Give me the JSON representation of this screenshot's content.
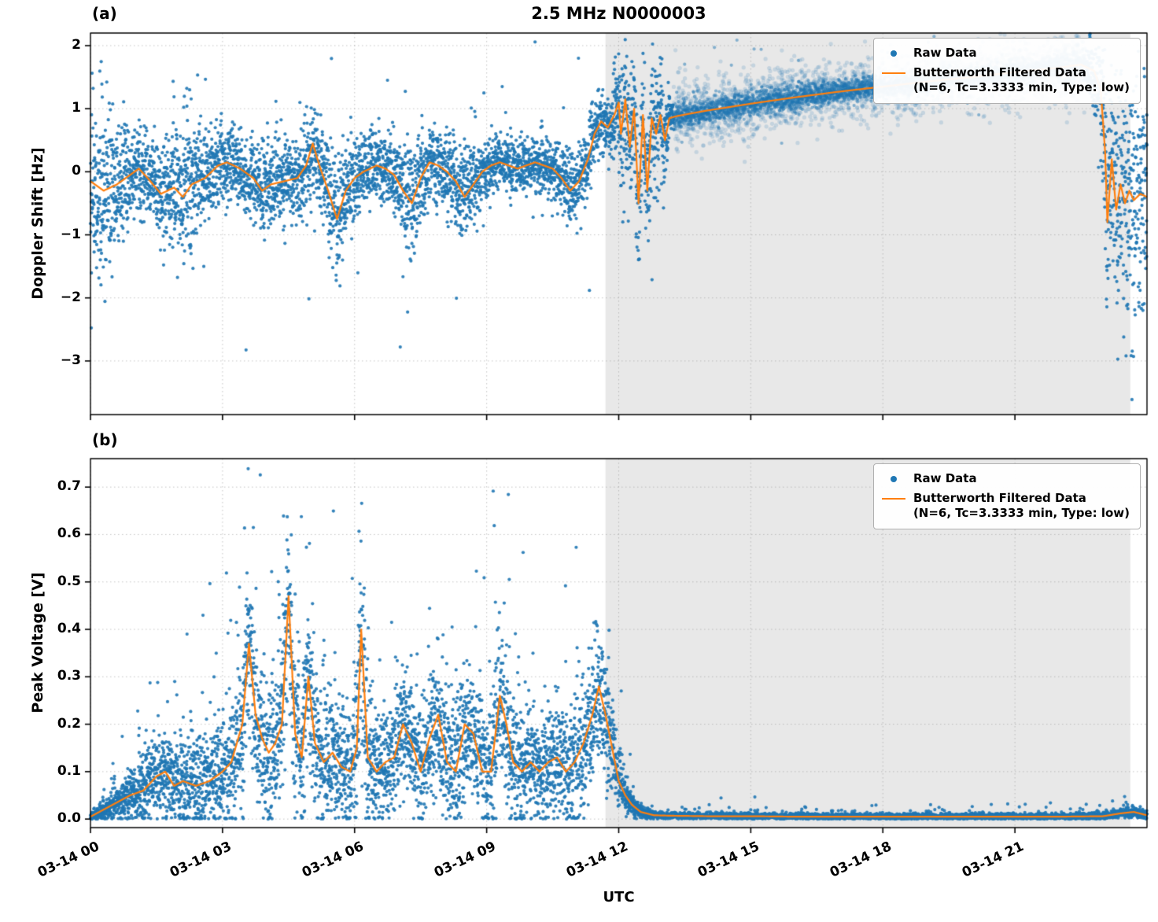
{
  "figure": {
    "title": "2.5 MHz N0000003",
    "xlabel": "UTC",
    "panel_a_label": "(a)",
    "panel_b_label": "(b)",
    "colors": {
      "raw": "#1f77b4",
      "filtered": "#ff7f0e",
      "shade": "#e8e8e8",
      "grid": "#bbbbbb",
      "axis": "#000000"
    }
  },
  "legend": {
    "raw_label": "Raw Data",
    "filtered_label_line1": "Butterworth Filtered Data",
    "filtered_label_line2": "(N=6, Tc=3.3333 min, Type: low)"
  },
  "chart_data": [
    {
      "id": "doppler-shift",
      "type": "scatter",
      "panel": "(a)",
      "ylabel": "Doppler Shift [Hz]",
      "units": "Hz",
      "ylim": [
        -3.85,
        2.2
      ],
      "yticks": [
        -3,
        -2,
        -1,
        0,
        1,
        2
      ],
      "ytick_decimals": 0,
      "x_range_hours": [
        0,
        24
      ],
      "xtick_hours": [
        0,
        3,
        6,
        9,
        12,
        15,
        18,
        21
      ],
      "xtick_labels": [
        "03-14 00",
        "03-14 03",
        "03-14 06",
        "03-14 09",
        "03-14 12",
        "03-14 15",
        "03-14 18",
        "03-14 21"
      ],
      "show_xtick_labels": false,
      "shaded_region_hours": [
        11.7,
        23.62
      ],
      "grid": true,
      "legend_position": "upper right",
      "series": [
        {
          "name": "Raw Data",
          "kind": "scatter",
          "color": "#1f77b4"
        },
        {
          "name": "Butterworth Filtered Data (N=6, Tc=3.3333 min, Type: low)",
          "kind": "line",
          "color": "#ff7f0e"
        }
      ],
      "seed": 42,
      "n_points": 8200,
      "outlier_prob": 0.02,
      "outlier_scale": 3.2,
      "outlier_side": "both",
      "halo_band": {
        "hours": [
          13.25,
          22.6
        ],
        "spread_scale": 2.6,
        "alpha": 0.18,
        "n_points": 2600
      },
      "filtered_line": [
        [
          0,
          -0.15
        ],
        [
          0.3,
          -0.3
        ],
        [
          0.6,
          -0.2
        ],
        [
          0.9,
          -0.05
        ],
        [
          1.1,
          0.05
        ],
        [
          1.3,
          -0.1
        ],
        [
          1.6,
          -0.35
        ],
        [
          1.9,
          -0.25
        ],
        [
          2.1,
          -0.4
        ],
        [
          2.3,
          -0.2
        ],
        [
          2.6,
          -0.1
        ],
        [
          2.9,
          0.1
        ],
        [
          3.1,
          0.15
        ],
        [
          3.4,
          0.05
        ],
        [
          3.7,
          -0.1
        ],
        [
          3.9,
          -0.3
        ],
        [
          4.1,
          -0.2
        ],
        [
          4.4,
          -0.15
        ],
        [
          4.7,
          -0.1
        ],
        [
          4.9,
          0.1
        ],
        [
          5.05,
          0.45
        ],
        [
          5.2,
          0.1
        ],
        [
          5.4,
          -0.3
        ],
        [
          5.6,
          -0.75
        ],
        [
          5.8,
          -0.3
        ],
        [
          6,
          -0.1
        ],
        [
          6.2,
          0
        ],
        [
          6.5,
          0.1
        ],
        [
          6.7,
          0.05
        ],
        [
          6.9,
          -0.05
        ],
        [
          7.1,
          -0.3
        ],
        [
          7.3,
          -0.5
        ],
        [
          7.5,
          -0.1
        ],
        [
          7.7,
          0.15
        ],
        [
          7.9,
          0.1
        ],
        [
          8.1,
          0
        ],
        [
          8.3,
          -0.15
        ],
        [
          8.5,
          -0.4
        ],
        [
          8.7,
          -0.2
        ],
        [
          8.9,
          0
        ],
        [
          9.1,
          0.1
        ],
        [
          9.3,
          0.15
        ],
        [
          9.5,
          0.1
        ],
        [
          9.7,
          0.05
        ],
        [
          9.9,
          0.1
        ],
        [
          10.1,
          0.15
        ],
        [
          10.3,
          0.1
        ],
        [
          10.5,
          0.05
        ],
        [
          10.7,
          -0.1
        ],
        [
          10.9,
          -0.3
        ],
        [
          11.1,
          -0.15
        ],
        [
          11.3,
          0.2
        ],
        [
          11.45,
          0.6
        ],
        [
          11.6,
          0.8
        ],
        [
          11.75,
          0.7
        ],
        [
          11.9,
          0.9
        ],
        [
          12,
          1.1
        ],
        [
          12.05,
          0.6
        ],
        [
          12.15,
          1.15
        ],
        [
          12.25,
          0.4
        ],
        [
          12.35,
          1
        ],
        [
          12.45,
          -0.5
        ],
        [
          12.55,
          0.9
        ],
        [
          12.65,
          -0.3
        ],
        [
          12.75,
          0.85
        ],
        [
          12.85,
          0.6
        ],
        [
          12.95,
          0.9
        ],
        [
          13.05,
          0.5
        ],
        [
          13.15,
          0.85
        ],
        [
          13.3,
          0.88
        ],
        [
          13.6,
          0.92
        ],
        [
          14,
          0.97
        ],
        [
          15,
          1.08
        ],
        [
          16,
          1.18
        ],
        [
          17,
          1.27
        ],
        [
          18,
          1.35
        ],
        [
          19,
          1.43
        ],
        [
          20,
          1.5
        ],
        [
          21,
          1.58
        ],
        [
          22,
          1.65
        ],
        [
          22.5,
          1.7
        ],
        [
          22.8,
          1.6
        ],
        [
          22.95,
          1.3
        ],
        [
          23.05,
          0.3
        ],
        [
          23.1,
          -0.8
        ],
        [
          23.2,
          0.2
        ],
        [
          23.3,
          -0.6
        ],
        [
          23.4,
          -0.2
        ],
        [
          23.5,
          -0.5
        ],
        [
          23.6,
          -0.3
        ],
        [
          23.7,
          -0.45
        ],
        [
          23.85,
          -0.35
        ],
        [
          24,
          -0.4
        ]
      ],
      "raw_spread": [
        [
          0,
          0.7
        ],
        [
          0.3,
          0.8
        ],
        [
          0.6,
          0.5
        ],
        [
          1,
          0.35
        ],
        [
          1.5,
          0.35
        ],
        [
          2,
          0.55
        ],
        [
          2.2,
          0.8
        ],
        [
          2.5,
          0.4
        ],
        [
          3,
          0.3
        ],
        [
          3.5,
          0.3
        ],
        [
          4,
          0.35
        ],
        [
          4.5,
          0.3
        ],
        [
          5,
          0.35
        ],
        [
          5.5,
          0.45
        ],
        [
          6,
          0.3
        ],
        [
          6.5,
          0.25
        ],
        [
          7,
          0.3
        ],
        [
          7.3,
          0.45
        ],
        [
          7.6,
          0.3
        ],
        [
          8,
          0.3
        ],
        [
          8.5,
          0.4
        ],
        [
          9,
          0.25
        ],
        [
          9.5,
          0.2
        ],
        [
          10,
          0.2
        ],
        [
          10.5,
          0.25
        ],
        [
          11,
          0.3
        ],
        [
          11.5,
          0.25
        ],
        [
          11.9,
          0.3
        ],
        [
          12.1,
          0.5
        ],
        [
          12.5,
          0.6
        ],
        [
          12.9,
          0.5
        ],
        [
          13.2,
          0.15
        ],
        [
          13.5,
          0.1
        ],
        [
          14,
          0.1
        ],
        [
          15,
          0.1
        ],
        [
          16,
          0.1
        ],
        [
          17,
          0.09
        ],
        [
          18,
          0.09
        ],
        [
          19,
          0.09
        ],
        [
          20,
          0.09
        ],
        [
          21,
          0.09
        ],
        [
          22,
          0.1
        ],
        [
          22.6,
          0.15
        ],
        [
          22.9,
          0.4
        ],
        [
          23.1,
          0.8
        ],
        [
          23.4,
          0.9
        ],
        [
          23.7,
          1
        ],
        [
          24,
          1.1
        ]
      ]
    },
    {
      "id": "peak-voltage",
      "type": "scatter",
      "panel": "(b)",
      "ylabel": "Peak Voltage [V]",
      "units": "V",
      "ylim": [
        -0.018,
        0.76
      ],
      "yticks": [
        0.0,
        0.1,
        0.2,
        0.3,
        0.4,
        0.5,
        0.6,
        0.7
      ],
      "ytick_decimals": 1,
      "x_range_hours": [
        0,
        24
      ],
      "xtick_hours": [
        0,
        3,
        6,
        9,
        12,
        15,
        18,
        21
      ],
      "xtick_labels": [
        "03-14 00",
        "03-14 03",
        "03-14 06",
        "03-14 09",
        "03-14 12",
        "03-14 15",
        "03-14 18",
        "03-14 21"
      ],
      "show_xtick_labels": true,
      "shaded_region_hours": [
        11.7,
        23.62
      ],
      "grid": true,
      "legend_position": "upper right",
      "series": [
        {
          "name": "Raw Data",
          "kind": "scatter",
          "color": "#1f77b4"
        },
        {
          "name": "Butterworth Filtered Data (N=6, Tc=3.3333 min, Type: low)",
          "kind": "line",
          "color": "#ff7f0e"
        }
      ],
      "seed": 1337,
      "n_points": 9000,
      "outlier_prob": 0.03,
      "outlier_scale": 2.8,
      "outlier_side": "up",
      "clip_min": 0.0,
      "filtered_line": [
        [
          0,
          0.005
        ],
        [
          0.3,
          0.02
        ],
        [
          0.6,
          0.035
        ],
        [
          0.9,
          0.05
        ],
        [
          1.2,
          0.06
        ],
        [
          1.5,
          0.09
        ],
        [
          1.7,
          0.1
        ],
        [
          1.9,
          0.07
        ],
        [
          2.1,
          0.08
        ],
        [
          2.4,
          0.07
        ],
        [
          2.7,
          0.08
        ],
        [
          3,
          0.1
        ],
        [
          3.2,
          0.12
        ],
        [
          3.45,
          0.2
        ],
        [
          3.6,
          0.37
        ],
        [
          3.75,
          0.22
        ],
        [
          3.9,
          0.17
        ],
        [
          4.05,
          0.14
        ],
        [
          4.2,
          0.16
        ],
        [
          4.35,
          0.2
        ],
        [
          4.5,
          0.47
        ],
        [
          4.65,
          0.18
        ],
        [
          4.8,
          0.13
        ],
        [
          4.95,
          0.3
        ],
        [
          5.1,
          0.16
        ],
        [
          5.3,
          0.12
        ],
        [
          5.5,
          0.14
        ],
        [
          5.7,
          0.11
        ],
        [
          5.9,
          0.1
        ],
        [
          6.05,
          0.15
        ],
        [
          6.15,
          0.4
        ],
        [
          6.3,
          0.13
        ],
        [
          6.5,
          0.1
        ],
        [
          6.7,
          0.12
        ],
        [
          6.9,
          0.13
        ],
        [
          7.1,
          0.2
        ],
        [
          7.3,
          0.16
        ],
        [
          7.5,
          0.1
        ],
        [
          7.7,
          0.17
        ],
        [
          7.9,
          0.22
        ],
        [
          8.1,
          0.12
        ],
        [
          8.3,
          0.1
        ],
        [
          8.5,
          0.2
        ],
        [
          8.7,
          0.18
        ],
        [
          8.9,
          0.1
        ],
        [
          9.1,
          0.1
        ],
        [
          9.3,
          0.26
        ],
        [
          9.45,
          0.2
        ],
        [
          9.6,
          0.12
        ],
        [
          9.8,
          0.1
        ],
        [
          10,
          0.12
        ],
        [
          10.2,
          0.1
        ],
        [
          10.4,
          0.12
        ],
        [
          10.6,
          0.13
        ],
        [
          10.8,
          0.1
        ],
        [
          11,
          0.12
        ],
        [
          11.2,
          0.16
        ],
        [
          11.4,
          0.22
        ],
        [
          11.55,
          0.28
        ],
        [
          11.7,
          0.22
        ],
        [
          11.85,
          0.15
        ],
        [
          12,
          0.08
        ],
        [
          12.15,
          0.05
        ],
        [
          12.3,
          0.03
        ],
        [
          12.5,
          0.015
        ],
        [
          12.8,
          0.008
        ],
        [
          13.2,
          0.007
        ],
        [
          14,
          0.006
        ],
        [
          15,
          0.006
        ],
        [
          16,
          0.005
        ],
        [
          17,
          0.005
        ],
        [
          18,
          0.005
        ],
        [
          19,
          0.005
        ],
        [
          20,
          0.005
        ],
        [
          21,
          0.005
        ],
        [
          22,
          0.005
        ],
        [
          23,
          0.006
        ],
        [
          23.4,
          0.012
        ],
        [
          23.7,
          0.015
        ],
        [
          24,
          0.008
        ]
      ],
      "raw_spread": [
        [
          0,
          0.004
        ],
        [
          0.5,
          0.015
        ],
        [
          1,
          0.03
        ],
        [
          1.5,
          0.045
        ],
        [
          2,
          0.045
        ],
        [
          2.5,
          0.05
        ],
        [
          3,
          0.06
        ],
        [
          3.5,
          0.09
        ],
        [
          4,
          0.09
        ],
        [
          4.5,
          0.1
        ],
        [
          5,
          0.07
        ],
        [
          5.5,
          0.07
        ],
        [
          6,
          0.07
        ],
        [
          6.2,
          0.12
        ],
        [
          6.5,
          0.06
        ],
        [
          7,
          0.06
        ],
        [
          7.5,
          0.07
        ],
        [
          8,
          0.07
        ],
        [
          8.5,
          0.07
        ],
        [
          9,
          0.06
        ],
        [
          9.3,
          0.09
        ],
        [
          9.6,
          0.07
        ],
        [
          10,
          0.06
        ],
        [
          10.5,
          0.06
        ],
        [
          11,
          0.07
        ],
        [
          11.5,
          0.08
        ],
        [
          11.8,
          0.06
        ],
        [
          12,
          0.03
        ],
        [
          12.3,
          0.012
        ],
        [
          12.6,
          0.006
        ],
        [
          13,
          0.003
        ],
        [
          14,
          0.003
        ],
        [
          16,
          0.003
        ],
        [
          18,
          0.003
        ],
        [
          20,
          0.003
        ],
        [
          22,
          0.003
        ],
        [
          23.2,
          0.004
        ],
        [
          23.6,
          0.006
        ],
        [
          24,
          0.005
        ]
      ]
    }
  ]
}
